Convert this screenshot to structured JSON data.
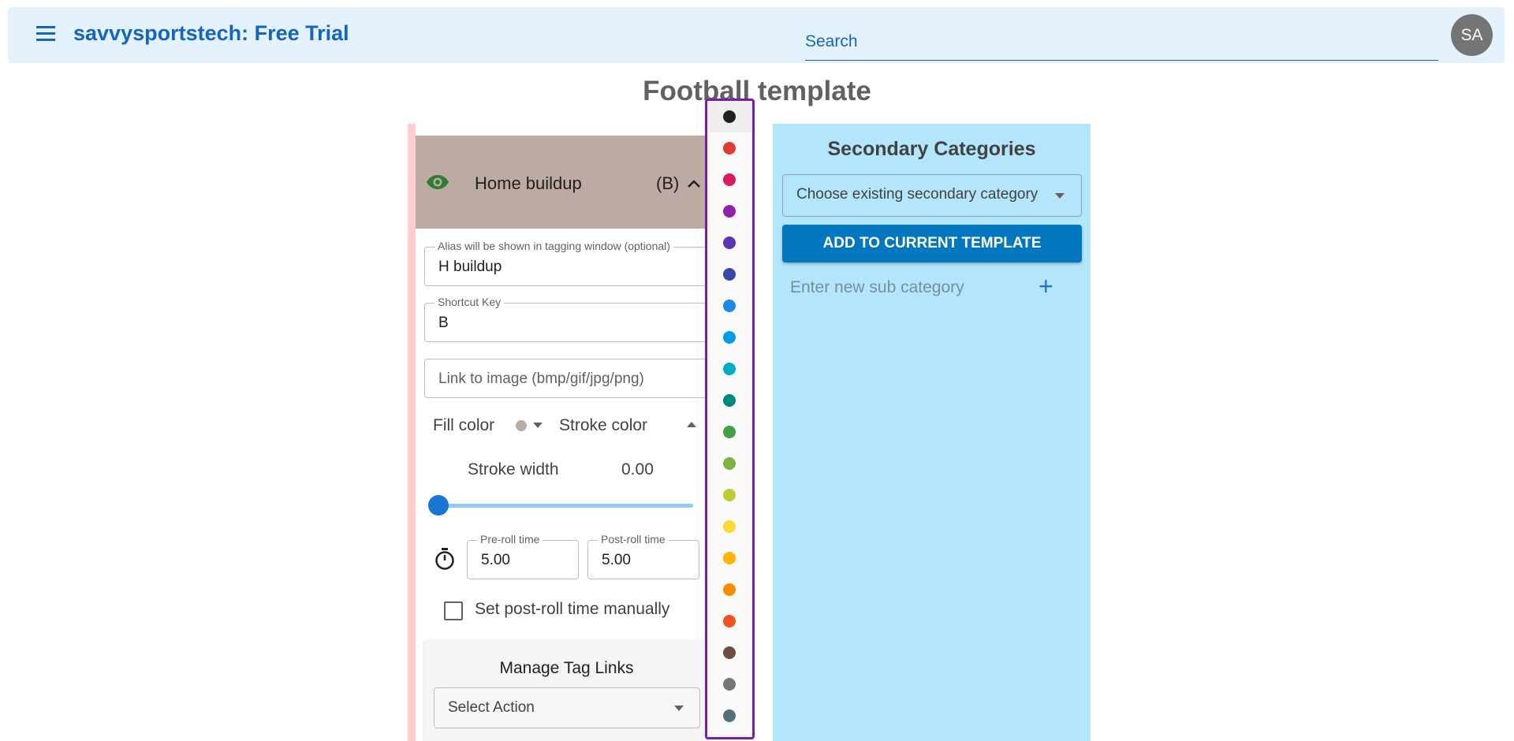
{
  "app": {
    "title": "savvysportstech: Free Trial",
    "search_placeholder": "Search",
    "avatar_initials": "SA",
    "page_title": "Football template"
  },
  "category": {
    "name": "Home buildup",
    "shortcut_display": "(B)",
    "alias_label": "Alias will be shown in tagging window (optional)",
    "alias_value": "H buildup",
    "shortcut_label": "Shortcut Key",
    "shortcut_value": "B",
    "image_placeholder": "Link to image (bmp/gif/jpg/png)",
    "fill_color_label": "Fill color",
    "fill_color": "#bcaaa4",
    "stroke_color_label": "Stroke color",
    "stroke_width_label": "Stroke width",
    "stroke_width_value": "0.00",
    "stroke_width_fraction": 0,
    "preroll_label": "Pre-roll time",
    "preroll_value": "5.00",
    "postroll_label": "Post-roll time",
    "postroll_value": "5.00",
    "manual_postroll_label": "Set post-roll time manually",
    "manual_postroll_checked": false
  },
  "tag_links": {
    "title": "Manage Tag Links",
    "select_action": "Select Action"
  },
  "palette": {
    "colors": [
      "#212121",
      "#e53935",
      "#d81b60",
      "#8e24aa",
      "#5e35b1",
      "#3949ab",
      "#1e88e5",
      "#039be5",
      "#00acc1",
      "#00897b",
      "#43a047",
      "#7cb342",
      "#c0ca33",
      "#fdd835",
      "#ffb300",
      "#fb8c00",
      "#f4511e",
      "#6d4c41",
      "#757575",
      "#546e7a"
    ],
    "selected_index": 0
  },
  "secondary": {
    "title": "Secondary Categories",
    "choose_placeholder": "Choose existing secondary category",
    "add_button": "ADD TO CURRENT TEMPLATE",
    "new_sub_placeholder": "Enter new sub category"
  }
}
